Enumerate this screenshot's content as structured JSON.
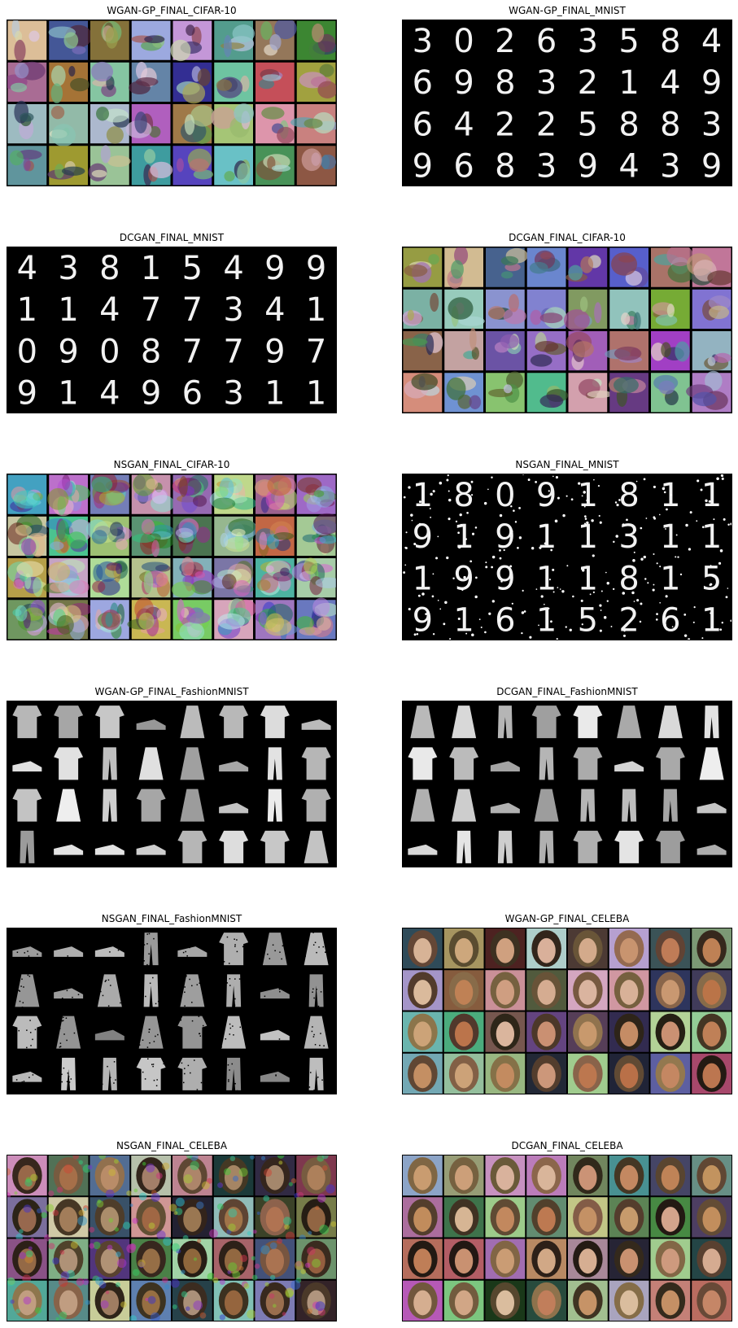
{
  "figure": {
    "panels": [
      {
        "title": "WGAN-GP_FINAL_CIFAR-10",
        "dataset": "CIFAR-10",
        "model": "WGAN-GP",
        "style": "color"
      },
      {
        "title": "WGAN-GP_FINAL_MNIST",
        "dataset": "MNIST",
        "model": "WGAN-GP",
        "style": "digits",
        "glyphs": [
          "3",
          "0",
          "2",
          "6",
          "3",
          "5",
          "8",
          "4",
          "6",
          "9",
          "8",
          "3",
          "2",
          "1",
          "4",
          "9",
          "6",
          "4",
          "2",
          "2",
          "5",
          "8",
          "8",
          "3",
          "9",
          "6",
          "8",
          "3",
          "9",
          "4",
          "3",
          "9"
        ]
      },
      {
        "title": "DCGAN_FINAL_MNIST",
        "dataset": "MNIST",
        "model": "DCGAN",
        "style": "digits",
        "glyphs": [
          "4",
          "3",
          "8",
          "1",
          "5",
          "4",
          "9",
          "9",
          "1",
          "1",
          "4",
          "7",
          "7",
          "3",
          "4",
          "1",
          "0",
          "9",
          "0",
          "8",
          "7",
          "7",
          "9",
          "7",
          "9",
          "1",
          "4",
          "9",
          "6",
          "3",
          "1",
          "1"
        ]
      },
      {
        "title": "DCGAN_FINAL_CIFAR-10",
        "dataset": "CIFAR-10",
        "model": "DCGAN",
        "style": "color"
      },
      {
        "title": "NSGAN_FINAL_CIFAR-10",
        "dataset": "CIFAR-10",
        "model": "NSGAN",
        "style": "noisy-color"
      },
      {
        "title": "NSGAN_FINAL_MNIST",
        "dataset": "MNIST",
        "model": "NSGAN",
        "style": "noisy-digits",
        "glyphs": [
          "1",
          "8",
          "0",
          "9",
          "1",
          "8",
          "1",
          "1",
          "9",
          "1",
          "9",
          "1",
          "1",
          "3",
          "1",
          "1",
          "1",
          "9",
          "9",
          "1",
          "1",
          "8",
          "1",
          "5",
          "9",
          "1",
          "6",
          "1",
          "5",
          "2",
          "6",
          "1"
        ]
      },
      {
        "title": "WGAN-GP_FINAL_FashionMNIST",
        "dataset": "FashionMNIST",
        "model": "WGAN-GP",
        "style": "fashion"
      },
      {
        "title": "DCGAN_FINAL_FashionMNIST",
        "dataset": "FashionMNIST",
        "model": "DCGAN",
        "style": "fashion"
      },
      {
        "title": "NSGAN_FINAL_FashionMNIST",
        "dataset": "FashionMNIST",
        "model": "NSGAN",
        "style": "noisy-fashion"
      },
      {
        "title": "WGAN-GP_FINAL_CELEBA",
        "dataset": "CELEBA",
        "model": "WGAN-GP",
        "style": "faces"
      },
      {
        "title": "NSGAN_FINAL_CELEBA",
        "dataset": "CELEBA",
        "model": "NSGAN",
        "style": "noisy-faces"
      },
      {
        "title": "DCGAN_FINAL_CELEBA",
        "dataset": "CELEBA",
        "model": "DCGAN",
        "style": "faces"
      }
    ],
    "grid": {
      "rows": 4,
      "cols": 8
    },
    "colors": {
      "background": "#ffffff",
      "grid_bg": "#000000",
      "border": "#000000",
      "digit": "#f2f2f2"
    }
  }
}
